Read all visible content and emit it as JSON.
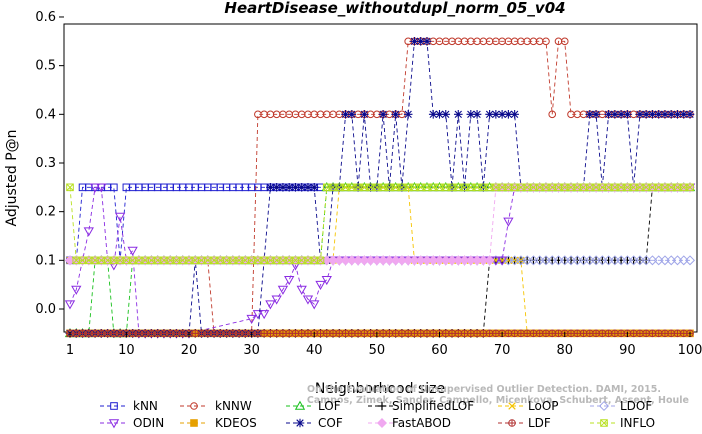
{
  "chart_data": {
    "type": "line",
    "title": "HeartDisease_withoutdupl_norm_05_v04",
    "xlabel": "Neighborhood size",
    "ylabel": "Adjusted P@n",
    "xlim": [
      0,
      100
    ],
    "ylim": [
      -0.05,
      0.6
    ],
    "xticks": [
      1,
      10,
      20,
      30,
      40,
      50,
      60,
      70,
      80,
      90,
      100
    ],
    "yticks": [
      0.0,
      0.1,
      0.2,
      0.3,
      0.4,
      0.5,
      0.6
    ],
    "ytick_labels": [
      "0.0",
      "0.1",
      "0.2",
      "0.3",
      "0.4",
      "0.5",
      "0.6"
    ],
    "grid": false,
    "legend_position": "bottom",
    "watermark": [
      "Campos, Zimek, Sander, Campello, Micenkova, Schubert, Assent, Houle",
      "On the Evaluation of Unsupervised Outlier Detection. DAMI, 2015."
    ],
    "series": [
      {
        "name": "kNN",
        "color": "#1f1fd0",
        "marker": "square",
        "line_style": "dash",
        "segments": [
          [
            1,
            2,
            0.1
          ],
          [
            3,
            8,
            0.25
          ],
          [
            9,
            9,
            0.1
          ],
          [
            10,
            100,
            0.25
          ]
        ]
      },
      {
        "name": "kNNW",
        "color": "#c0392b",
        "marker": "circle",
        "line_style": "dash",
        "segments": [
          [
            1,
            23,
            0.1
          ],
          [
            24,
            30,
            -0.05
          ],
          [
            31,
            54,
            0.4
          ],
          [
            55,
            77,
            0.55
          ],
          [
            78,
            78,
            0.4
          ],
          [
            79,
            80,
            0.55
          ],
          [
            81,
            100,
            0.4
          ]
        ]
      },
      {
        "name": "LOF",
        "color": "#17c01b",
        "marker": "triangle",
        "line_style": "dash",
        "segments": [
          [
            1,
            4,
            -0.05
          ],
          [
            5,
            7,
            0.1
          ],
          [
            8,
            10,
            -0.05
          ],
          [
            11,
            21,
            0.1
          ],
          [
            22,
            38,
            0.1
          ],
          [
            39,
            41,
            0.1
          ],
          [
            42,
            100,
            0.25
          ]
        ]
      },
      {
        "name": "SimplifiedLOF",
        "color": "#000000",
        "marker": "plus",
        "line_style": "dash",
        "segments": [
          [
            1,
            67,
            -0.05
          ],
          [
            68,
            68,
            0.1
          ],
          [
            69,
            93,
            0.1
          ],
          [
            94,
            100,
            0.25
          ]
        ]
      },
      {
        "name": "LoOP",
        "color": "#f5c400",
        "marker": "x",
        "line_style": "dash",
        "segments": [
          [
            1,
            43,
            0.1
          ],
          [
            44,
            55,
            0.25
          ],
          [
            56,
            73,
            0.1
          ],
          [
            74,
            100,
            -0.05
          ]
        ]
      },
      {
        "name": "LDOF",
        "color": "#a0a6e8",
        "marker": "diamond",
        "line_style": "dash",
        "segments": [
          [
            1,
            93,
            0.1
          ],
          [
            94,
            100,
            0.1
          ]
        ]
      },
      {
        "name": "ODIN",
        "color": "#8a2be2",
        "marker": "triangle-down",
        "line_style": "dash",
        "points": [
          [
            1,
            0.01
          ],
          [
            2,
            0.04
          ],
          [
            3,
            0.1
          ],
          [
            4,
            0.16
          ],
          [
            5,
            0.25
          ],
          [
            6,
            0.25
          ],
          [
            7,
            0.1
          ],
          [
            8,
            0.09
          ],
          [
            9,
            0.19
          ],
          [
            10,
            0.1
          ],
          [
            11,
            0.12
          ],
          [
            12,
            -0.05
          ],
          [
            20,
            -0.05
          ],
          [
            30,
            -0.02
          ],
          [
            31,
            -0.01
          ],
          [
            32,
            -0.01
          ],
          [
            33,
            0.01
          ],
          [
            34,
            0.02
          ],
          [
            35,
            0.04
          ],
          [
            36,
            0.06
          ],
          [
            37,
            0.09
          ],
          [
            38,
            0.04
          ],
          [
            39,
            0.02
          ],
          [
            40,
            0.01
          ],
          [
            41,
            0.05
          ],
          [
            42,
            0.06
          ],
          [
            43,
            0.1
          ],
          [
            70,
            0.1
          ],
          [
            71,
            0.18
          ],
          [
            72,
            0.25
          ],
          [
            100,
            0.25
          ]
        ]
      },
      {
        "name": "KDEOS",
        "color": "#e6a000",
        "marker": "square-filled",
        "line_style": "dash",
        "segments": [
          [
            1,
            100,
            -0.05
          ]
        ]
      },
      {
        "name": "COF",
        "color": "#0a0a8c",
        "marker": "star",
        "line_style": "dash",
        "points": [
          [
            1,
            -0.05
          ],
          [
            20,
            -0.05
          ],
          [
            21,
            0.1
          ],
          [
            22,
            -0.05
          ],
          [
            31,
            -0.05
          ],
          [
            32,
            0.1
          ],
          [
            33,
            0.25
          ],
          [
            40,
            0.25
          ],
          [
            41,
            0.1
          ],
          [
            42,
            0.1
          ],
          [
            43,
            0.25
          ],
          [
            44,
            0.25
          ],
          [
            45,
            0.4
          ],
          [
            46,
            0.4
          ],
          [
            47,
            0.25
          ],
          [
            48,
            0.4
          ],
          [
            49,
            0.25
          ],
          [
            50,
            0.25
          ],
          [
            51,
            0.4
          ],
          [
            52,
            0.25
          ],
          [
            53,
            0.4
          ],
          [
            54,
            0.25
          ],
          [
            55,
            0.4
          ],
          [
            56,
            0.55
          ],
          [
            57,
            0.55
          ],
          [
            58,
            0.55
          ],
          [
            59,
            0.4
          ],
          [
            60,
            0.4
          ],
          [
            61,
            0.4
          ],
          [
            62,
            0.25
          ],
          [
            63,
            0.4
          ],
          [
            64,
            0.25
          ],
          [
            65,
            0.4
          ],
          [
            66,
            0.4
          ],
          [
            67,
            0.25
          ],
          [
            68,
            0.4
          ],
          [
            69,
            0.4
          ],
          [
            70,
            0.4
          ],
          [
            71,
            0.4
          ],
          [
            72,
            0.4
          ],
          [
            73,
            0.25
          ],
          [
            74,
            0.25
          ],
          [
            83,
            0.25
          ],
          [
            84,
            0.4
          ],
          [
            85,
            0.4
          ],
          [
            86,
            0.25
          ],
          [
            87,
            0.4
          ],
          [
            88,
            0.4
          ],
          [
            89,
            0.4
          ],
          [
            90,
            0.4
          ],
          [
            91,
            0.25
          ],
          [
            92,
            0.4
          ],
          [
            93,
            0.4
          ],
          [
            94,
            0.4
          ],
          [
            95,
            0.4
          ],
          [
            96,
            0.4
          ],
          [
            97,
            0.4
          ],
          [
            98,
            0.4
          ],
          [
            99,
            0.4
          ],
          [
            100,
            0.4
          ]
        ]
      },
      {
        "name": "FastABOD",
        "color": "#f0a8f0",
        "marker": "diamond-filled",
        "line_style": "dash",
        "segments": [
          [
            1,
            43,
            0.1
          ],
          [
            44,
            68,
            0.1
          ],
          [
            69,
            100,
            0.25
          ]
        ]
      },
      {
        "name": "LDF",
        "color": "#b03030",
        "marker": "circle-plus",
        "line_style": "dash",
        "segments": [
          [
            1,
            100,
            -0.05
          ]
        ]
      },
      {
        "name": "INFLO",
        "color": "#b8e020",
        "marker": "star-x",
        "line_style": "dash",
        "segments": [
          [
            1,
            1,
            0.25
          ],
          [
            2,
            2,
            0.1
          ],
          [
            3,
            20,
            0.1
          ],
          [
            21,
            41,
            0.1
          ],
          [
            42,
            100,
            0.25
          ]
        ]
      }
    ]
  }
}
